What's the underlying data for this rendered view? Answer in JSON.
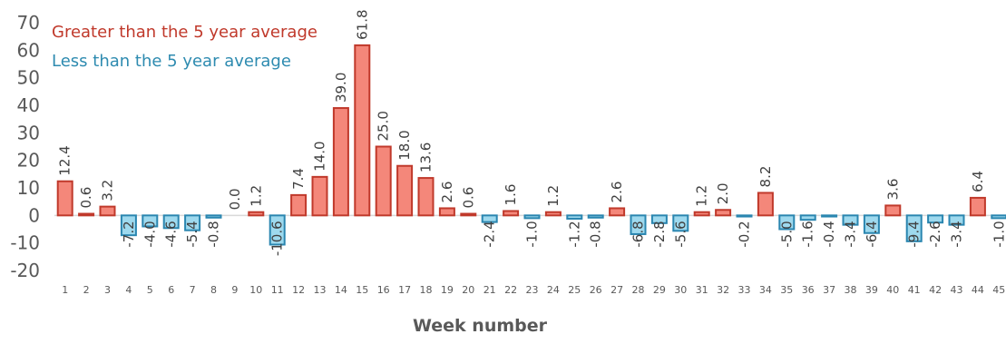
{
  "chart_data": {
    "type": "bar",
    "xlabel": "Week number",
    "ylabel": "",
    "ylim": [
      -20,
      70
    ],
    "yticks": [
      -20,
      -10,
      0,
      10,
      20,
      30,
      40,
      50,
      60,
      70
    ],
    "ytick_labels": [
      "-20",
      "-10",
      "0",
      "10",
      "20",
      "30",
      "40",
      "50",
      "60",
      "70"
    ],
    "grid": false,
    "legend_position": "top-left",
    "categories": [
      "1",
      "2",
      "3",
      "4",
      "5",
      "6",
      "7",
      "8",
      "9",
      "10",
      "11",
      "12",
      "13",
      "14",
      "15",
      "16",
      "17",
      "18",
      "19",
      "20",
      "21",
      "22",
      "23",
      "24",
      "25",
      "26",
      "27",
      "28",
      "29",
      "30",
      "31",
      "32",
      "33",
      "34",
      "35",
      "36",
      "37",
      "38",
      "39",
      "40",
      "41",
      "42",
      "43",
      "44",
      "45"
    ],
    "values": [
      12.4,
      0.6,
      3.2,
      -7.2,
      -4.0,
      -4.6,
      -5.4,
      -0.8,
      0.0,
      1.2,
      -10.6,
      7.4,
      14.0,
      39.0,
      61.8,
      25.0,
      18.0,
      13.6,
      2.6,
      0.6,
      -2.4,
      1.6,
      -1.0,
      1.2,
      -1.2,
      -0.8,
      2.6,
      -6.8,
      -2.8,
      -5.6,
      1.2,
      2.0,
      -0.2,
      8.2,
      -5.0,
      -1.6,
      -0.4,
      -3.4,
      -6.4,
      3.6,
      -9.4,
      -2.6,
      -3.4,
      6.4,
      -1.0
    ],
    "data_labels": [
      "12.4",
      "0.6",
      "3.2",
      "-7.2",
      "-4.0",
      "-4.6",
      "-5.4",
      "-0.8",
      "0.0",
      "1.2",
      "-10.6",
      "7.4",
      "14.0",
      "39.0",
      "61.8",
      "25.0",
      "18.0",
      "13.6",
      "2.6",
      "0.6",
      "-2.4",
      "1.6",
      "-1.0",
      "1.2",
      "-1.2",
      "-0.8",
      "2.6",
      "-6.8",
      "-2.8",
      "-5.6",
      "1.2",
      "2.0",
      "-0.2",
      "8.2",
      "-5.0",
      "-1.6",
      "-0.4",
      "-3.4",
      "-6.4",
      "3.6",
      "-9.4",
      "-2.6",
      "-3.4",
      "6.4",
      "-1.0"
    ],
    "legend": [
      {
        "label": "Greater than the 5 year average",
        "color": "#C0392B"
      },
      {
        "label": "Less than the 5 year average",
        "color": "#2E8BB0"
      }
    ],
    "colors": {
      "positive_fill": "#F4877A",
      "positive_stroke": "#C0392B",
      "negative_fill": "#9ED9EE",
      "negative_stroke": "#2A86B0",
      "zero_line": "#D9D9D9"
    }
  }
}
